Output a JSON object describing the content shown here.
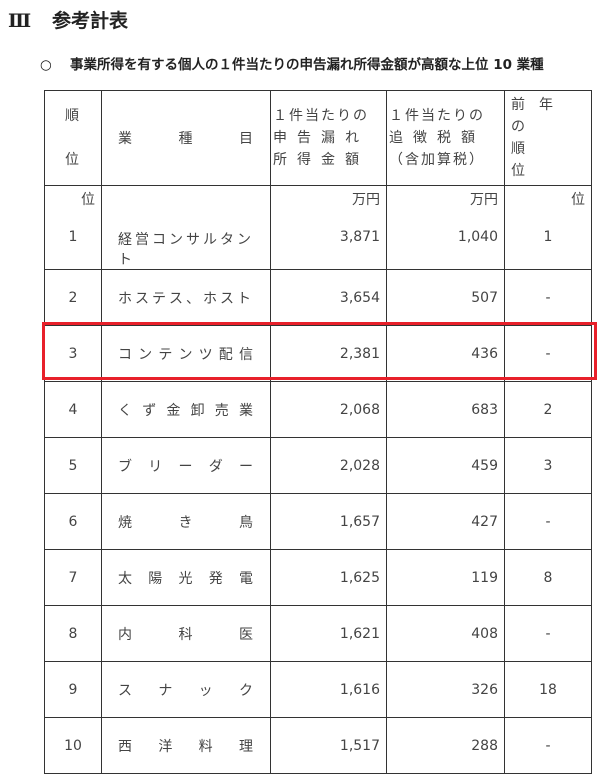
{
  "section": {
    "number": "Ⅲ",
    "title": "参考計表"
  },
  "subtitle": {
    "bullet": "○",
    "text": "事業所得を有する個人の１件当たりの申告漏れ所得金額が高額な上位 10 業種"
  },
  "table": {
    "headers": {
      "rank": [
        "順",
        "位"
      ],
      "industry": [
        "業",
        "種",
        "目"
      ],
      "undeclared_income": [
        "１件当たりの",
        "申告漏れ",
        "所得金額"
      ],
      "additional_tax": [
        "１件当たりの",
        "追徴税額",
        "（含加算税）"
      ],
      "prev_rank": [
        "前年の",
        "順位"
      ]
    },
    "units": {
      "rank": "位",
      "undeclared_income": "万円",
      "additional_tax": "万円",
      "prev_rank": "位"
    },
    "rows": [
      {
        "rank": "1",
        "industry": "経営コンサルタント",
        "income": "3,871",
        "tax": "1,040",
        "prev": "1"
      },
      {
        "rank": "2",
        "industry": "ホステス、ホスト",
        "income": "3,654",
        "tax": "507",
        "prev": "-"
      },
      {
        "rank": "3",
        "industry": "コンテンツ配信",
        "income": "2,381",
        "tax": "436",
        "prev": "-"
      },
      {
        "rank": "4",
        "industry": "くず金卸売業",
        "income": "2,068",
        "tax": "683",
        "prev": "2"
      },
      {
        "rank": "5",
        "industry": "ブリーダー",
        "income": "2,028",
        "tax": "459",
        "prev": "3"
      },
      {
        "rank": "6",
        "industry": "焼き鳥",
        "income": "1,657",
        "tax": "427",
        "prev": "-"
      },
      {
        "rank": "7",
        "industry": "太陽光発電",
        "income": "1,625",
        "tax": "119",
        "prev": "8"
      },
      {
        "rank": "8",
        "industry": "内科医",
        "income": "1,621",
        "tax": "408",
        "prev": "-"
      },
      {
        "rank": "9",
        "industry": "スナック",
        "income": "1,616",
        "tax": "326",
        "prev": "18"
      },
      {
        "rank": "10",
        "industry": "西洋料理",
        "income": "1,517",
        "tax": "288",
        "prev": "-"
      }
    ],
    "highlighted_rank": "3",
    "highlight_color": "#e8202a"
  }
}
